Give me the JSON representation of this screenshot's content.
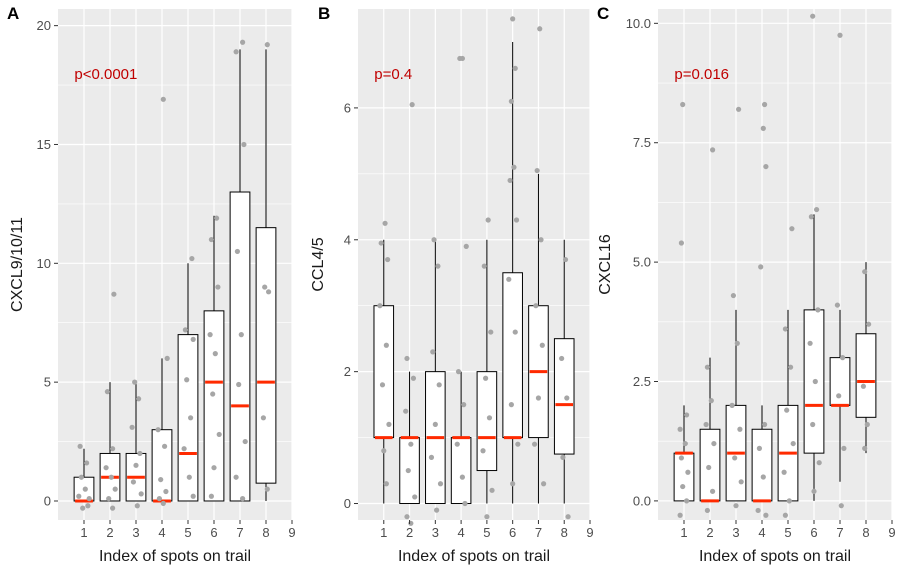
{
  "colors": {
    "panel_bg": "#ebebeb",
    "grid": "#ffffff",
    "box_edge": "#000000",
    "box_fill": "#ffffff",
    "median": "#ff2a00",
    "points": "#a6a6a6",
    "pval": "#c00000"
  },
  "chart_data": [
    {
      "type": "box",
      "panel": "A",
      "ylabel": "CXCL9/10/11",
      "xlabel": "Index of spots on trail",
      "annotation": "p<0.0001",
      "xlim": [
        0,
        9
      ],
      "ylim": [
        -0.8,
        20.7
      ],
      "xticks": [
        1,
        2,
        3,
        4,
        5,
        6,
        7,
        8,
        9
      ],
      "yticks": [
        0,
        5,
        10,
        15,
        20
      ],
      "ytick_labels": [
        "0",
        "5",
        "10",
        "15",
        "20"
      ],
      "grid": true,
      "boxes": [
        {
          "x": 1,
          "q1": 0,
          "median": 0,
          "q3": 1,
          "whisker_low": 0,
          "whisker_high": 2.2
        },
        {
          "x": 2,
          "q1": 0,
          "median": 1,
          "q3": 2,
          "whisker_low": 0,
          "whisker_high": 5
        },
        {
          "x": 3,
          "q1": 0,
          "median": 1,
          "q3": 2,
          "whisker_low": 0,
          "whisker_high": 5
        },
        {
          "x": 4,
          "q1": 0,
          "median": 0,
          "q3": 3,
          "whisker_low": 0,
          "whisker_high": 6
        },
        {
          "x": 5,
          "q1": 0,
          "median": 2,
          "q3": 7,
          "whisker_low": 0,
          "whisker_high": 10
        },
        {
          "x": 6,
          "q1": 0,
          "median": 5,
          "q3": 8,
          "whisker_low": 0,
          "whisker_high": 12
        },
        {
          "x": 7,
          "q1": 0,
          "median": 4,
          "q3": 13,
          "whisker_low": 0,
          "whisker_high": 19
        },
        {
          "x": 8,
          "q1": 0.75,
          "median": 5,
          "q3": 11.5,
          "whisker_low": 0,
          "whisker_high": 19
        }
      ],
      "points": [
        {
          "x": 0.85,
          "y": 2.3
        },
        {
          "x": 1.1,
          "y": 1.6
        },
        {
          "x": 0.9,
          "y": 1.0
        },
        {
          "x": 1.05,
          "y": 0.5
        },
        {
          "x": 0.8,
          "y": 0.2
        },
        {
          "x": 1.2,
          "y": 0.1
        },
        {
          "x": 0.95,
          "y": -0.3
        },
        {
          "x": 1.15,
          "y": -0.2
        },
        {
          "x": 2.15,
          "y": 8.7
        },
        {
          "x": 1.9,
          "y": 4.6
        },
        {
          "x": 2.1,
          "y": 2.2
        },
        {
          "x": 1.85,
          "y": 1.4
        },
        {
          "x": 2.05,
          "y": 1.0
        },
        {
          "x": 2.2,
          "y": 0.5
        },
        {
          "x": 1.95,
          "y": 0.1
        },
        {
          "x": 2.1,
          "y": -0.3
        },
        {
          "x": 2.95,
          "y": 5.0
        },
        {
          "x": 3.1,
          "y": 4.3
        },
        {
          "x": 2.85,
          "y": 3.1
        },
        {
          "x": 3.15,
          "y": 2.0
        },
        {
          "x": 3.0,
          "y": 1.5
        },
        {
          "x": 2.9,
          "y": 0.8
        },
        {
          "x": 3.2,
          "y": 0.3
        },
        {
          "x": 3.05,
          "y": -0.2
        },
        {
          "x": 4.05,
          "y": 16.9
        },
        {
          "x": 4.2,
          "y": 6.0
        },
        {
          "x": 3.85,
          "y": 3.0
        },
        {
          "x": 4.1,
          "y": 2.3
        },
        {
          "x": 3.95,
          "y": 0.9
        },
        {
          "x": 4.15,
          "y": 0.4
        },
        {
          "x": 3.9,
          "y": 0.1
        },
        {
          "x": 4.05,
          "y": -0.1
        },
        {
          "x": 5.15,
          "y": 10.2
        },
        {
          "x": 4.9,
          "y": 7.2
        },
        {
          "x": 5.2,
          "y": 6.8
        },
        {
          "x": 4.95,
          "y": 5.1
        },
        {
          "x": 5.1,
          "y": 3.5
        },
        {
          "x": 4.85,
          "y": 2.2
        },
        {
          "x": 5.05,
          "y": 1.0
        },
        {
          "x": 5.2,
          "y": 0.2
        },
        {
          "x": 6.1,
          "y": 11.9
        },
        {
          "x": 5.9,
          "y": 11.0
        },
        {
          "x": 6.15,
          "y": 9.0
        },
        {
          "x": 5.85,
          "y": 7.0
        },
        {
          "x": 6.05,
          "y": 6.2
        },
        {
          "x": 5.95,
          "y": 4.5
        },
        {
          "x": 6.2,
          "y": 2.8
        },
        {
          "x": 6.0,
          "y": 1.4
        },
        {
          "x": 5.9,
          "y": 0.2
        },
        {
          "x": 7.1,
          "y": 19.3
        },
        {
          "x": 6.85,
          "y": 18.9
        },
        {
          "x": 7.15,
          "y": 15.0
        },
        {
          "x": 6.9,
          "y": 10.5
        },
        {
          "x": 7.05,
          "y": 7.0
        },
        {
          "x": 6.95,
          "y": 4.9
        },
        {
          "x": 7.2,
          "y": 2.5
        },
        {
          "x": 6.85,
          "y": 1.0
        },
        {
          "x": 7.1,
          "y": 0.1
        },
        {
          "x": 8.05,
          "y": 19.2
        },
        {
          "x": 7.95,
          "y": 9.0
        },
        {
          "x": 8.1,
          "y": 8.8
        },
        {
          "x": 7.9,
          "y": 3.5
        },
        {
          "x": 8.05,
          "y": 0.5
        }
      ]
    },
    {
      "type": "box",
      "panel": "B",
      "ylabel": "CCL4/5",
      "xlabel": "Index of spots on trail",
      "annotation": "p=0.4",
      "xlim": [
        0,
        9
      ],
      "ylim": [
        -0.25,
        7.5
      ],
      "xticks": [
        1,
        2,
        3,
        4,
        5,
        6,
        7,
        8,
        9
      ],
      "yticks": [
        0,
        2,
        4,
        6
      ],
      "ytick_labels": [
        "0",
        "2",
        "4",
        "6"
      ],
      "grid": true,
      "boxes": [
        {
          "x": 1,
          "q1": 1,
          "median": 1,
          "q3": 3,
          "whisker_low": 0,
          "whisker_high": 4
        },
        {
          "x": 2,
          "q1": 0,
          "median": 1,
          "q3": 1,
          "whisker_low": 0,
          "whisker_high": 2
        },
        {
          "x": 3,
          "q1": 0,
          "median": 1,
          "q3": 2,
          "whisker_low": 0,
          "whisker_high": 4
        },
        {
          "x": 4,
          "q1": 0,
          "median": 1,
          "q3": 1,
          "whisker_low": 0,
          "whisker_high": 2
        },
        {
          "x": 5,
          "q1": 0.5,
          "median": 1,
          "q3": 2,
          "whisker_low": 0,
          "whisker_high": 4
        },
        {
          "x": 6,
          "q1": 1,
          "median": 1,
          "q3": 3.5,
          "whisker_low": 0,
          "whisker_high": 7
        },
        {
          "x": 7,
          "q1": 1,
          "median": 2,
          "q3": 3,
          "whisker_low": 0,
          "whisker_high": 5
        },
        {
          "x": 8,
          "q1": 0.75,
          "median": 1.5,
          "q3": 2.5,
          "whisker_low": 0,
          "whisker_high": 4
        }
      ],
      "points": [
        {
          "x": 1.05,
          "y": 4.25
        },
        {
          "x": 0.9,
          "y": 3.95
        },
        {
          "x": 1.15,
          "y": 3.7
        },
        {
          "x": 0.85,
          "y": 3.0
        },
        {
          "x": 1.1,
          "y": 2.4
        },
        {
          "x": 0.95,
          "y": 1.8
        },
        {
          "x": 1.2,
          "y": 1.2
        },
        {
          "x": 1.0,
          "y": 0.8
        },
        {
          "x": 1.1,
          "y": 0.3
        },
        {
          "x": 2.1,
          "y": 6.05
        },
        {
          "x": 1.9,
          "y": 2.2
        },
        {
          "x": 2.15,
          "y": 1.9
        },
        {
          "x": 1.85,
          "y": 1.4
        },
        {
          "x": 2.05,
          "y": 0.9
        },
        {
          "x": 1.95,
          "y": 0.5
        },
        {
          "x": 2.2,
          "y": 0.1
        },
        {
          "x": 1.9,
          "y": -0.2
        },
        {
          "x": 2.05,
          "y": -0.3
        },
        {
          "x": 2.95,
          "y": 4.0
        },
        {
          "x": 3.1,
          "y": 3.6
        },
        {
          "x": 2.9,
          "y": 2.3
        },
        {
          "x": 3.15,
          "y": 1.8
        },
        {
          "x": 3.0,
          "y": 1.2
        },
        {
          "x": 2.85,
          "y": 0.7
        },
        {
          "x": 3.2,
          "y": 0.3
        },
        {
          "x": 3.05,
          "y": -0.1
        },
        {
          "x": 3.95,
          "y": 6.75
        },
        {
          "x": 4.05,
          "y": 6.75
        },
        {
          "x": 4.2,
          "y": 3.9
        },
        {
          "x": 3.9,
          "y": 2.0
        },
        {
          "x": 4.1,
          "y": 1.5
        },
        {
          "x": 3.85,
          "y": 0.9
        },
        {
          "x": 4.05,
          "y": 0.4
        },
        {
          "x": 4.15,
          "y": 0.0
        },
        {
          "x": 5.05,
          "y": 4.3
        },
        {
          "x": 4.9,
          "y": 3.6
        },
        {
          "x": 5.15,
          "y": 2.6
        },
        {
          "x": 4.95,
          "y": 1.9
        },
        {
          "x": 5.1,
          "y": 1.3
        },
        {
          "x": 4.85,
          "y": 0.8
        },
        {
          "x": 5.2,
          "y": 0.2
        },
        {
          "x": 5.0,
          "y": -0.2
        },
        {
          "x": 6.0,
          "y": 7.35
        },
        {
          "x": 6.1,
          "y": 6.6
        },
        {
          "x": 5.95,
          "y": 6.1
        },
        {
          "x": 6.05,
          "y": 5.1
        },
        {
          "x": 5.9,
          "y": 4.9
        },
        {
          "x": 6.15,
          "y": 4.3
        },
        {
          "x": 5.85,
          "y": 3.4
        },
        {
          "x": 6.1,
          "y": 2.6
        },
        {
          "x": 5.95,
          "y": 1.5
        },
        {
          "x": 6.2,
          "y": 0.9
        },
        {
          "x": 6.0,
          "y": 0.3
        },
        {
          "x": 7.05,
          "y": 7.2
        },
        {
          "x": 6.95,
          "y": 5.05
        },
        {
          "x": 7.1,
          "y": 4.0
        },
        {
          "x": 6.9,
          "y": 3.0
        },
        {
          "x": 7.15,
          "y": 2.4
        },
        {
          "x": 7.0,
          "y": 1.6
        },
        {
          "x": 6.85,
          "y": 0.9
        },
        {
          "x": 7.2,
          "y": 0.3
        },
        {
          "x": 8.05,
          "y": 3.7
        },
        {
          "x": 7.9,
          "y": 2.2
        },
        {
          "x": 8.1,
          "y": 1.6
        },
        {
          "x": 7.95,
          "y": 0.7
        },
        {
          "x": 8.15,
          "y": -0.2
        }
      ]
    },
    {
      "type": "box",
      "panel": "C",
      "ylabel": "CXCL16",
      "xlabel": "Index of spots on trail",
      "annotation": "p=0.016",
      "xlim": [
        0,
        9
      ],
      "ylim": [
        -0.4,
        10.3
      ],
      "xticks": [
        1,
        2,
        3,
        4,
        5,
        6,
        7,
        8,
        9
      ],
      "yticks": [
        0,
        2.5,
        5,
        7.5,
        10
      ],
      "ytick_labels": [
        "0.0",
        "2.5",
        "5.0",
        "7.5",
        "10.0"
      ],
      "grid": true,
      "boxes": [
        {
          "x": 1,
          "q1": 0,
          "median": 1,
          "q3": 1,
          "whisker_low": 0,
          "whisker_high": 2
        },
        {
          "x": 2,
          "q1": 0,
          "median": 0,
          "q3": 1.5,
          "whisker_low": 0,
          "whisker_high": 3
        },
        {
          "x": 3,
          "q1": 0,
          "median": 1,
          "q3": 2,
          "whisker_low": 0,
          "whisker_high": 4
        },
        {
          "x": 4,
          "q1": 0,
          "median": 0,
          "q3": 1.5,
          "whisker_low": 0,
          "whisker_high": 2
        },
        {
          "x": 5,
          "q1": 0,
          "median": 1,
          "q3": 2,
          "whisker_low": 0,
          "whisker_high": 4
        },
        {
          "x": 6,
          "q1": 1,
          "median": 2,
          "q3": 4,
          "whisker_low": 0,
          "whisker_high": 6
        },
        {
          "x": 7,
          "q1": 2,
          "median": 2,
          "q3": 3,
          "whisker_low": 0.4,
          "whisker_high": 4
        },
        {
          "x": 8,
          "q1": 1.75,
          "median": 2.5,
          "q3": 3.5,
          "whisker_low": 1,
          "whisker_high": 5
        }
      ],
      "points": [
        {
          "x": 0.95,
          "y": 8.3
        },
        {
          "x": 0.9,
          "y": 5.4
        },
        {
          "x": 1.1,
          "y": 1.8
        },
        {
          "x": 0.85,
          "y": 1.5
        },
        {
          "x": 1.05,
          "y": 1.2
        },
        {
          "x": 0.9,
          "y": 0.9
        },
        {
          "x": 1.15,
          "y": 0.6
        },
        {
          "x": 0.95,
          "y": 0.3
        },
        {
          "x": 1.1,
          "y": 0.0
        },
        {
          "x": 0.85,
          "y": -0.3
        },
        {
          "x": 2.1,
          "y": 7.35
        },
        {
          "x": 1.9,
          "y": 2.8
        },
        {
          "x": 2.05,
          "y": 2.1
        },
        {
          "x": 1.85,
          "y": 1.6
        },
        {
          "x": 2.15,
          "y": 1.2
        },
        {
          "x": 1.95,
          "y": 0.7
        },
        {
          "x": 2.1,
          "y": 0.2
        },
        {
          "x": 1.9,
          "y": -0.2
        },
        {
          "x": 2.9,
          "y": 4.3
        },
        {
          "x": 3.1,
          "y": 8.2
        },
        {
          "x": 3.05,
          "y": 3.3
        },
        {
          "x": 2.85,
          "y": 2.0
        },
        {
          "x": 3.15,
          "y": 1.5
        },
        {
          "x": 2.95,
          "y": 0.9
        },
        {
          "x": 3.2,
          "y": 0.4
        },
        {
          "x": 3.0,
          "y": -0.1
        },
        {
          "x": 4.1,
          "y": 8.3
        },
        {
          "x": 4.05,
          "y": 7.8
        },
        {
          "x": 4.15,
          "y": 7.0
        },
        {
          "x": 3.95,
          "y": 4.9
        },
        {
          "x": 4.1,
          "y": 1.6
        },
        {
          "x": 3.9,
          "y": 1.1
        },
        {
          "x": 4.05,
          "y": 0.5
        },
        {
          "x": 3.85,
          "y": -0.2
        },
        {
          "x": 4.15,
          "y": -0.3
        },
        {
          "x": 5.15,
          "y": 5.7
        },
        {
          "x": 4.9,
          "y": 3.6
        },
        {
          "x": 5.1,
          "y": 2.8
        },
        {
          "x": 4.95,
          "y": 1.9
        },
        {
          "x": 5.2,
          "y": 1.2
        },
        {
          "x": 4.85,
          "y": 0.6
        },
        {
          "x": 5.05,
          "y": 0.0
        },
        {
          "x": 4.9,
          "y": -0.3
        },
        {
          "x": 5.95,
          "y": 10.15
        },
        {
          "x": 6.1,
          "y": 6.1
        },
        {
          "x": 5.9,
          "y": 5.95
        },
        {
          "x": 6.15,
          "y": 4.0
        },
        {
          "x": 5.85,
          "y": 3.3
        },
        {
          "x": 6.05,
          "y": 2.5
        },
        {
          "x": 5.95,
          "y": 1.6
        },
        {
          "x": 6.2,
          "y": 0.8
        },
        {
          "x": 6.0,
          "y": 0.2
        },
        {
          "x": 7.0,
          "y": 9.75
        },
        {
          "x": 6.9,
          "y": 4.1
        },
        {
          "x": 7.1,
          "y": 3.0
        },
        {
          "x": 6.95,
          "y": 2.2
        },
        {
          "x": 7.15,
          "y": 1.1
        },
        {
          "x": 7.05,
          "y": -0.1
        },
        {
          "x": 7.95,
          "y": 4.8
        },
        {
          "x": 8.1,
          "y": 3.7
        },
        {
          "x": 7.9,
          "y": 2.4
        },
        {
          "x": 8.05,
          "y": 1.6
        },
        {
          "x": 7.95,
          "y": 1.1
        }
      ]
    }
  ]
}
